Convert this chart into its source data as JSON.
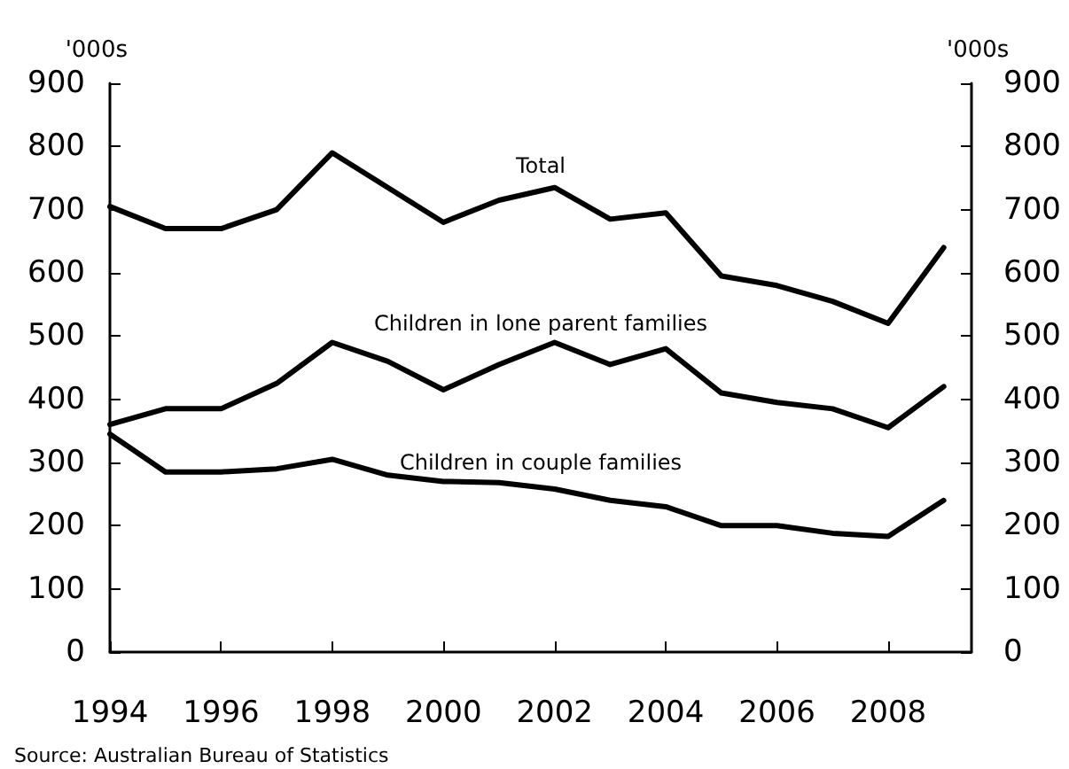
{
  "chart_data": {
    "type": "line",
    "x": [
      1994,
      1995,
      1996,
      1997,
      1998,
      1999,
      2000,
      2001,
      2002,
      2003,
      2004,
      2005,
      2006,
      2007,
      2008,
      2009
    ],
    "series": [
      {
        "name": "Total",
        "color": "#000000",
        "values": [
          705,
          670,
          670,
          700,
          790,
          735,
          680,
          715,
          735,
          685,
          695,
          595,
          580,
          555,
          520,
          640
        ]
      },
      {
        "name": "Children in lone parent families",
        "color": "#000000",
        "values": [
          360,
          385,
          385,
          425,
          490,
          460,
          415,
          455,
          490,
          455,
          480,
          410,
          395,
          385,
          355,
          420
        ]
      },
      {
        "name": "Children in couple families",
        "color": "#000000",
        "values": [
          345,
          285,
          285,
          290,
          305,
          280,
          270,
          268,
          258,
          240,
          230,
          200,
          200,
          188,
          183,
          240
        ]
      }
    ],
    "xlim": [
      1994,
      2009.5
    ],
    "xticks": [
      1994,
      1996,
      1998,
      2000,
      2002,
      2004,
      2006,
      2008
    ],
    "ylim": [
      0,
      900
    ],
    "yticks": [
      0,
      100,
      200,
      300,
      400,
      500,
      600,
      700,
      800,
      900
    ],
    "y2lim": [
      0,
      900
    ],
    "y2ticks": [
      0,
      100,
      200,
      300,
      400,
      500,
      600,
      700,
      800,
      900
    ],
    "ylabel": "'000s",
    "y2label": "'000s",
    "annotations": [
      "Source: Australian Bureau of Statistics"
    ],
    "grid": false,
    "legend": false,
    "marker": "none",
    "line_style": "solid"
  }
}
